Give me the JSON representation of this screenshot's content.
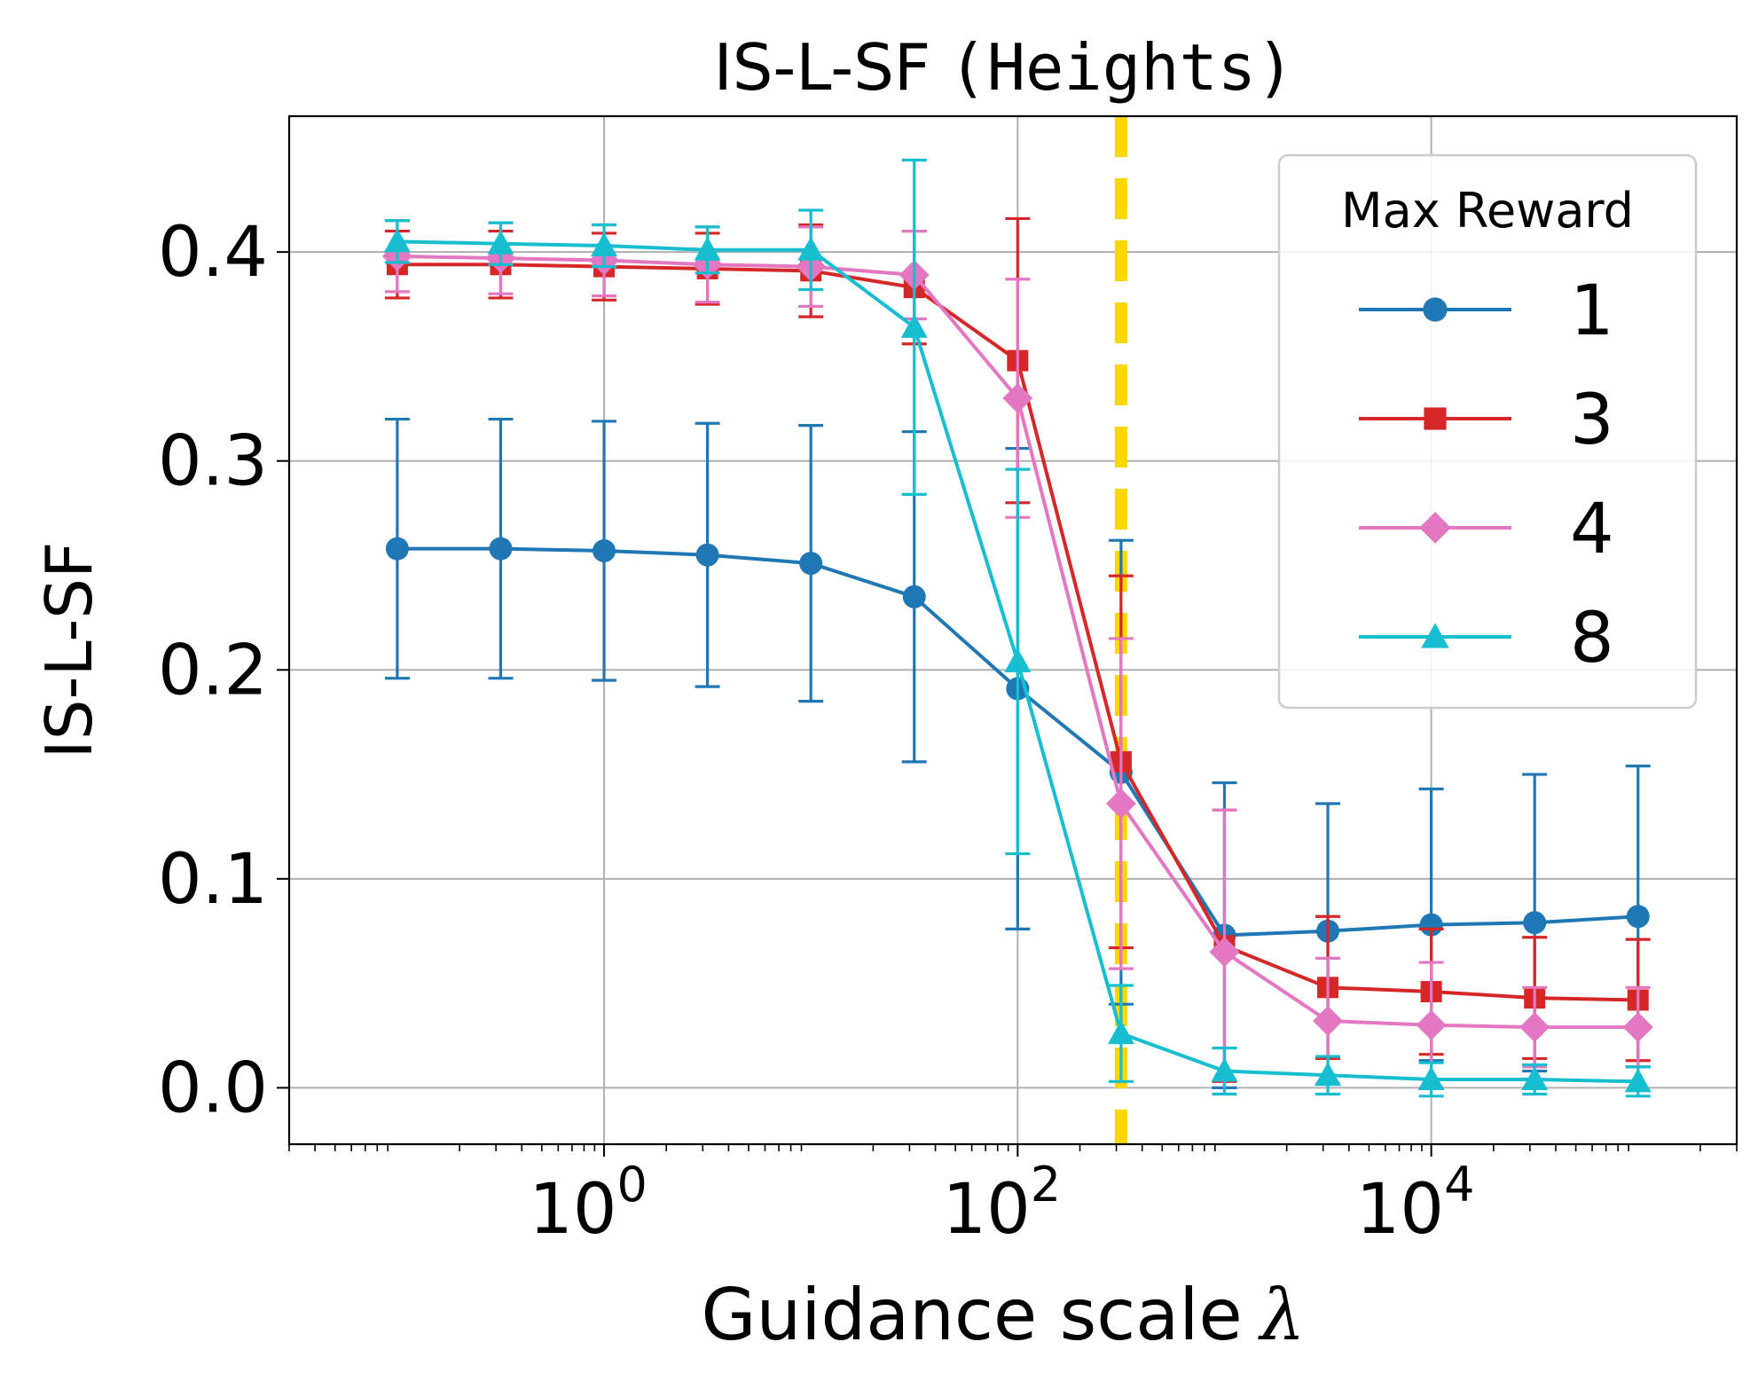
{
  "chart_data": {
    "type": "line",
    "title": "IS-L-SF",
    "title_mono": "(Heights)",
    "xlabel": "Guidance scale",
    "xlabel_symbol": "λ",
    "ylabel": "IS-L-SF",
    "xscale": "log",
    "xlim": [
      0.03,
      300000
    ],
    "ylim": [
      -0.027,
      0.465
    ],
    "x_ticks": [
      1,
      100,
      10000
    ],
    "x_tick_labels": [
      {
        "base": "10",
        "exp": "0"
      },
      {
        "base": "10",
        "exp": "2"
      },
      {
        "base": "10",
        "exp": "4"
      }
    ],
    "y_ticks": [
      0.0,
      0.1,
      0.2,
      0.3,
      0.4
    ],
    "y_tick_labels": [
      "0.0",
      "0.1",
      "0.2",
      "0.3",
      "0.4"
    ],
    "grid": true,
    "x": [
      0.1,
      0.3162,
      1,
      3.162,
      10,
      31.62,
      100,
      316.2,
      1000,
      3162,
      10000,
      31620,
      100000
    ],
    "reference_line": {
      "x": 316.2,
      "color": "#ffd700",
      "style": "dashed"
    },
    "legend": {
      "title": "Max Reward",
      "position": "upper-right"
    },
    "series": [
      {
        "name": "1",
        "color": "#1f77b4",
        "marker": "circle",
        "values": [
          0.258,
          0.258,
          0.257,
          0.255,
          0.251,
          0.235,
          0.191,
          0.151,
          0.073,
          0.075,
          0.078,
          0.079,
          0.082
        ],
        "errors": [
          0.062,
          0.062,
          0.062,
          0.063,
          0.066,
          0.079,
          0.115,
          0.111,
          0.073,
          0.061,
          0.065,
          0.071,
          0.072
        ]
      },
      {
        "name": "3",
        "color": "#d62728",
        "marker": "square",
        "values": [
          0.394,
          0.394,
          0.393,
          0.392,
          0.391,
          0.383,
          0.348,
          0.156,
          0.068,
          0.048,
          0.046,
          0.043,
          0.042
        ],
        "errors": [
          0.016,
          0.016,
          0.016,
          0.017,
          0.022,
          0.027,
          0.068,
          0.089,
          0.065,
          0.034,
          0.03,
          0.029,
          0.029
        ]
      },
      {
        "name": "4",
        "color": "#e377c2",
        "marker": "diamond",
        "values": [
          0.398,
          0.397,
          0.396,
          0.394,
          0.393,
          0.389,
          0.33,
          0.136,
          0.065,
          0.032,
          0.03,
          0.029,
          0.029
        ],
        "errors": [
          0.017,
          0.017,
          0.017,
          0.018,
          0.019,
          0.021,
          0.057,
          0.079,
          0.068,
          0.03,
          0.03,
          0.019,
          0.019
        ]
      },
      {
        "name": "8",
        "color": "#17becf",
        "marker": "triangle",
        "values": [
          0.405,
          0.404,
          0.403,
          0.401,
          0.401,
          0.364,
          0.204,
          0.026,
          0.008,
          0.006,
          0.004,
          0.004,
          0.003
        ],
        "errors": [
          0.01,
          0.01,
          0.01,
          0.011,
          0.019,
          0.08,
          0.092,
          0.023,
          0.011,
          0.009,
          0.008,
          0.007,
          0.007
        ]
      }
    ]
  }
}
